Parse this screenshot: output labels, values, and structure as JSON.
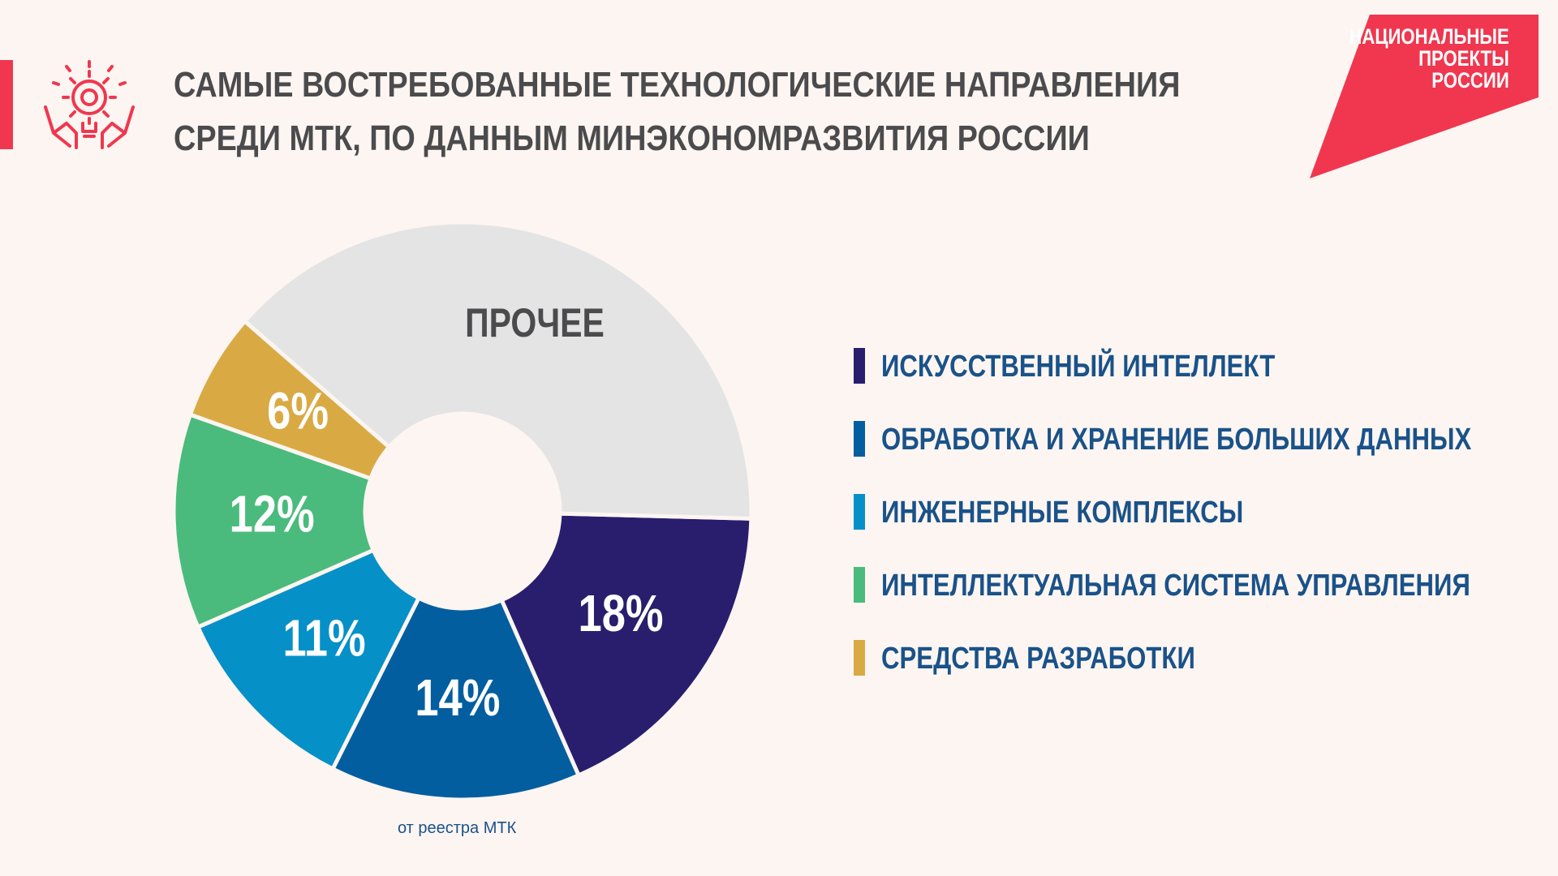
{
  "header": {
    "title_line1": "САМЫЕ ВОСТРЕБОВАННЫЕ ТЕХНОЛОГИЧЕСКИЕ НАПРАВЛЕНИЯ",
    "title_line2": "СРЕДИ МТК, ПО ДАННЫМ МИНЭКОНОМРАЗВИТИЯ РОССИИ",
    "icon": "hands-gear-lightbulb-icon"
  },
  "logo": {
    "line1": "НАЦИОНАЛЬНЫЕ",
    "line2": "ПРОЕКТЫ",
    "line3": "РОССИИ",
    "color": "#f0374f"
  },
  "colors": {
    "accent": "#f0374f",
    "text_dark": "#4b4b4d",
    "text_blue": "#1a5289",
    "background": "#fcf5f1"
  },
  "chart_data": {
    "type": "pie",
    "subtype": "donut",
    "series": [
      {
        "name": "ИСКУССТВЕННЫЙ ИНТЕЛЛЕКТ",
        "value": 18,
        "label": "18%",
        "color": "#291e6d"
      },
      {
        "name": "ОБРАБОТКА И ХРАНЕНИЕ БОЛЬШИХ ДАННЫХ",
        "value": 14,
        "label": "14%",
        "color": "#035ea0"
      },
      {
        "name": "ИНЖЕНЕРНЫЕ КОМПЛЕКСЫ",
        "value": 11,
        "label": "11%",
        "color": "#0690c8"
      },
      {
        "name": "ИНТЕЛЛЕКТУАЛЬНАЯ СИСТЕМА УПРАВЛЕНИЯ",
        "value": 12,
        "label": "12%",
        "color": "#4abb7c"
      },
      {
        "name": "СРЕДСТВА РАЗРАБОТКИ",
        "value": 6,
        "label": "6%",
        "color": "#d9aa44"
      },
      {
        "name": "ПРОЧЕЕ",
        "value": 39,
        "label": "ПРОЧЕЕ",
        "color": "#e4e4e4"
      }
    ],
    "legend_position": "right"
  },
  "footnote": "от реестра МТК"
}
